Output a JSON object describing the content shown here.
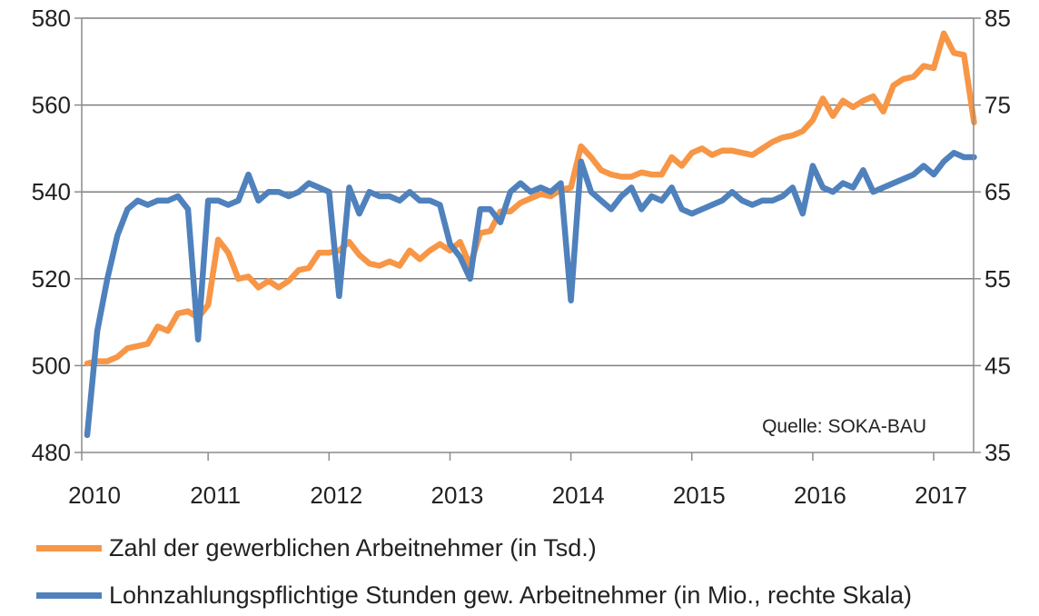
{
  "chart_data": {
    "type": "line",
    "source_note": "Quelle: SOKA-BAU",
    "x_ticks": [
      "2010",
      "2011",
      "2012",
      "2013",
      "2014",
      "2015",
      "2016",
      "2017"
    ],
    "y_left": {
      "min": 480,
      "max": 580,
      "ticks": [
        "480",
        "500",
        "520",
        "540",
        "560",
        "580"
      ]
    },
    "y_right": {
      "min": 35,
      "max": 85,
      "ticks": [
        "35",
        "45",
        "55",
        "65",
        "75",
        "85"
      ]
    },
    "grid": "horizontal",
    "legend_position": "bottom",
    "series": [
      {
        "name": "Zahl der gewerblichen Arbeitnehmer (in Tsd.)",
        "axis": "left",
        "color": "#F79646",
        "values": [
          500.5,
          501,
          501,
          502,
          504,
          504.5,
          505,
          509,
          508,
          512,
          512.5,
          511,
          514,
          529,
          526,
          520,
          520.5,
          518,
          519.5,
          518,
          519.5,
          522,
          522.5,
          526,
          526,
          526.5,
          528.5,
          525.5,
          523.5,
          523,
          524,
          523,
          526.5,
          524.5,
          526.5,
          528,
          526.5,
          528.5,
          523,
          530.5,
          531,
          535.5,
          535.5,
          537.5,
          538.5,
          539.5,
          539,
          540.5,
          541,
          550.5,
          548,
          545,
          544,
          543.5,
          543.5,
          544.5,
          544,
          544,
          548,
          546,
          549,
          550,
          548.5,
          549.5,
          549.5,
          549,
          548.5,
          550,
          551.5,
          552.5,
          553,
          554,
          556.5,
          561.5,
          557.5,
          561,
          559.5,
          561,
          562,
          558.5,
          564.5,
          566,
          566.5,
          569,
          568.5,
          576.5,
          572,
          571.5,
          556
        ]
      },
      {
        "name": "Lohnzahlungspflichtige Stunden gew. Arbeitnehmer (in Mio.,  rechte Skala)",
        "axis": "right",
        "color": "#4F81BD",
        "values": [
          37,
          49,
          55,
          60,
          63,
          64,
          63.5,
          64,
          64,
          64.5,
          63,
          48,
          64,
          64,
          63.5,
          64,
          67,
          64,
          65,
          65,
          64.5,
          65,
          66,
          65.5,
          65,
          53,
          65.5,
          62.5,
          65,
          64.5,
          64.5,
          64,
          65,
          64,
          64,
          63.5,
          59,
          57.5,
          55,
          63,
          63,
          61.5,
          65,
          66,
          65,
          65.5,
          65,
          66,
          52.5,
          68.5,
          65,
          64,
          63,
          64.5,
          65.5,
          63,
          64.5,
          64,
          65.5,
          63,
          62.5,
          63,
          63.5,
          64,
          65,
          64,
          63.5,
          64,
          64,
          64.5,
          65.5,
          62.5,
          68,
          65.5,
          65,
          66,
          65.5,
          67.5,
          65,
          65.5,
          66,
          66.5,
          67,
          68,
          67,
          68.5,
          69.5,
          69,
          69
        ]
      }
    ]
  }
}
